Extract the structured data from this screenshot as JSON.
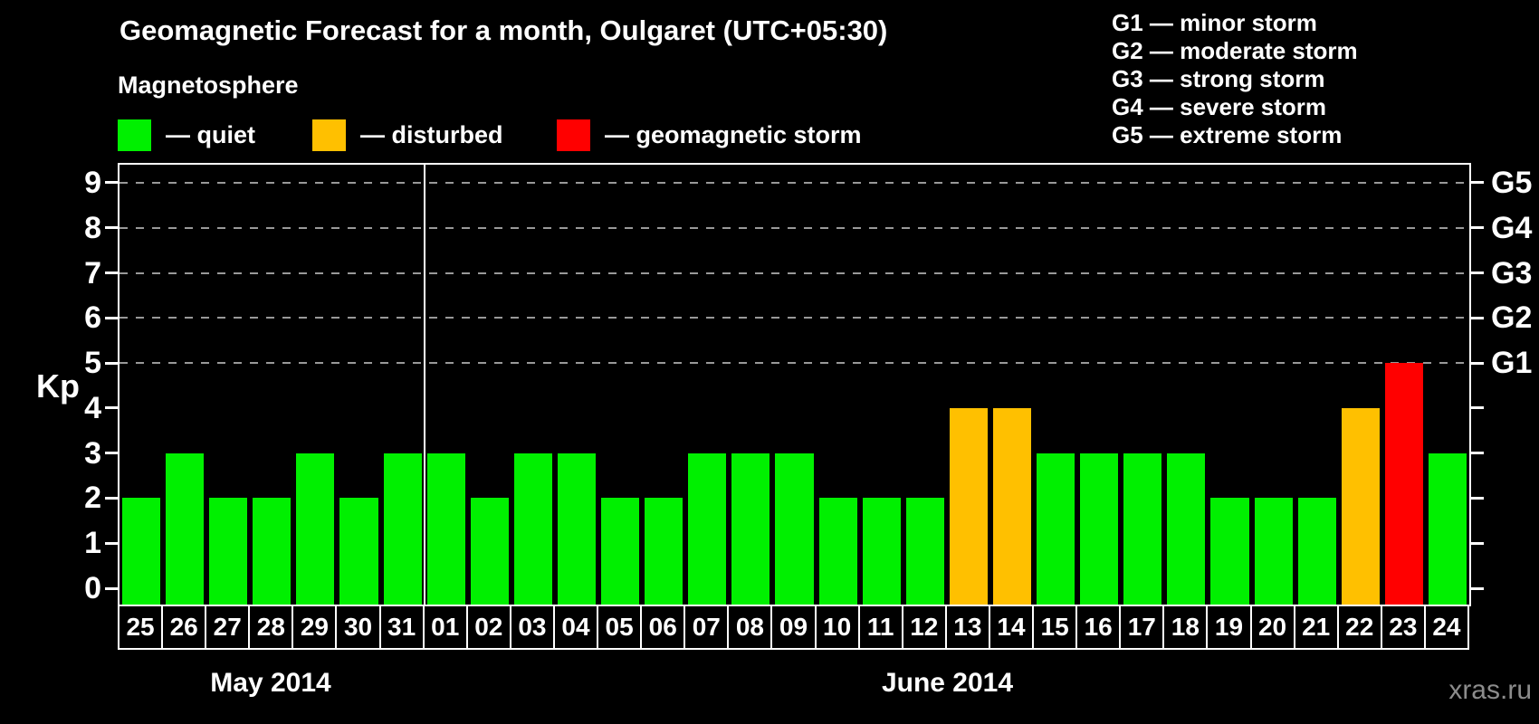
{
  "title": "Geomagnetic Forecast for a month, Oulgaret (UTC+05:30)",
  "legend": {
    "heading": "Magnetosphere",
    "items": [
      {
        "name": "quiet",
        "label": "— quiet",
        "color": "#00F000"
      },
      {
        "name": "disturbed",
        "label": "— disturbed",
        "color": "#FFC000"
      },
      {
        "name": "storm",
        "label": "— geomagnetic storm",
        "color": "#FF0000"
      }
    ]
  },
  "storm_scale_legend": [
    "G1 — minor storm",
    "G2 — moderate storm",
    "G3 — strong storm",
    "G4 — severe storm",
    "G5 — extreme storm"
  ],
  "axes": {
    "y_label": "Kp",
    "y_ticks": [
      0,
      1,
      2,
      3,
      4,
      5,
      6,
      7,
      8,
      9
    ],
    "right_labels": [
      {
        "kp": 5,
        "label": "G1"
      },
      {
        "kp": 6,
        "label": "G2"
      },
      {
        "kp": 7,
        "label": "G3"
      },
      {
        "kp": 8,
        "label": "G4"
      },
      {
        "kp": 9,
        "label": "G5"
      }
    ]
  },
  "months": [
    {
      "label": "May 2014",
      "days": 7
    },
    {
      "label": "June 2014",
      "days": 24
    }
  ],
  "watermark": "xras.ru",
  "chart_data": {
    "type": "bar",
    "title": "Geomagnetic Forecast for a month, Oulgaret (UTC+05:30)",
    "xlabel": "",
    "ylabel": "Kp",
    "ylim": [
      0,
      9
    ],
    "grid_levels": [
      5,
      6,
      7,
      8,
      9
    ],
    "legend_position": "top",
    "grid": "dashed horizontal at Kp 5-9 (G1-G5)",
    "categories": [
      "25",
      "26",
      "27",
      "28",
      "29",
      "30",
      "31",
      "01",
      "02",
      "03",
      "04",
      "05",
      "06",
      "07",
      "08",
      "09",
      "10",
      "11",
      "12",
      "13",
      "14",
      "15",
      "16",
      "17",
      "18",
      "19",
      "20",
      "21",
      "22",
      "23",
      "24"
    ],
    "values": [
      2,
      3,
      2,
      2,
      3,
      2,
      3,
      3,
      2,
      3,
      3,
      2,
      2,
      3,
      3,
      3,
      2,
      2,
      2,
      4,
      4,
      3,
      3,
      3,
      3,
      2,
      2,
      2,
      4,
      5,
      3
    ],
    "statuses": [
      "quiet",
      "quiet",
      "quiet",
      "quiet",
      "quiet",
      "quiet",
      "quiet",
      "quiet",
      "quiet",
      "quiet",
      "quiet",
      "quiet",
      "quiet",
      "quiet",
      "quiet",
      "quiet",
      "quiet",
      "quiet",
      "quiet",
      "disturbed",
      "disturbed",
      "quiet",
      "quiet",
      "quiet",
      "quiet",
      "quiet",
      "quiet",
      "quiet",
      "disturbed",
      "storm",
      "quiet"
    ],
    "month_split_index": 7
  }
}
